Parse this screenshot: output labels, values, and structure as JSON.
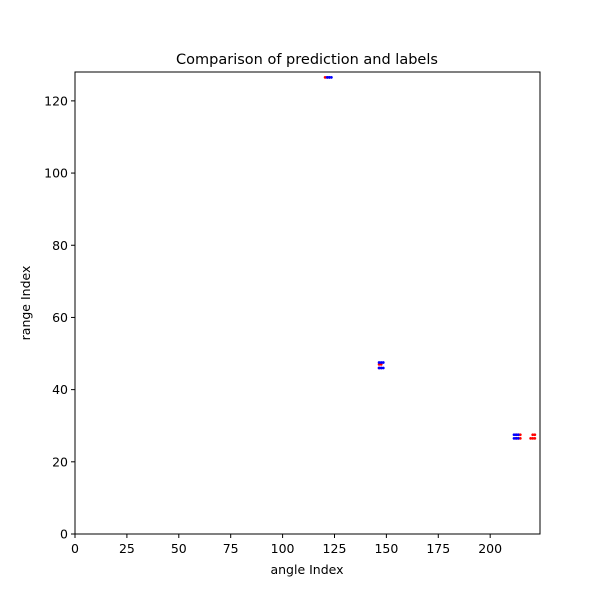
{
  "chart_data": {
    "type": "scatter",
    "title": "Comparison of prediction and labels",
    "xlabel": "angle Index",
    "ylabel": "range Index",
    "xlim": [
      0,
      224
    ],
    "ylim": [
      0,
      128
    ],
    "xticks": [
      0,
      25,
      50,
      75,
      100,
      125,
      150,
      175,
      200
    ],
    "yticks": [
      0,
      20,
      40,
      60,
      80,
      100,
      120
    ],
    "grid": false,
    "legend": "none",
    "series": [
      {
        "color": "#ff0000",
        "marker": "dot",
        "points": [
          [
            120.5,
            126.5
          ],
          [
            121.5,
            126.5
          ],
          [
            122.5,
            126.5
          ],
          [
            146.5,
            46
          ],
          [
            147.5,
            46
          ],
          [
            146.5,
            47
          ],
          [
            147.5,
            47
          ],
          [
            212.5,
            26.5
          ],
          [
            213.5,
            26.5
          ],
          [
            214.5,
            26.5
          ],
          [
            212.5,
            27.5
          ],
          [
            213.5,
            27.5
          ],
          [
            214.5,
            27.5
          ],
          [
            219.5,
            26.5
          ],
          [
            220.5,
            26.5
          ],
          [
            221.5,
            26.5
          ],
          [
            220.5,
            27.5
          ],
          [
            221.5,
            27.5
          ]
        ]
      },
      {
        "color": "#0000ff",
        "marker": "dot",
        "points": [
          [
            121.5,
            126.5
          ],
          [
            122.5,
            126.5
          ],
          [
            123.5,
            126.5
          ],
          [
            146.5,
            46
          ],
          [
            147.5,
            46
          ],
          [
            148.5,
            46
          ],
          [
            146.5,
            47.5
          ],
          [
            147.5,
            47.5
          ],
          [
            148.5,
            47.5
          ],
          [
            211.5,
            26.5
          ],
          [
            212.5,
            26.5
          ],
          [
            213.5,
            26.5
          ],
          [
            211.5,
            27.5
          ],
          [
            212.5,
            27.5
          ],
          [
            213.5,
            27.5
          ]
        ]
      }
    ]
  }
}
